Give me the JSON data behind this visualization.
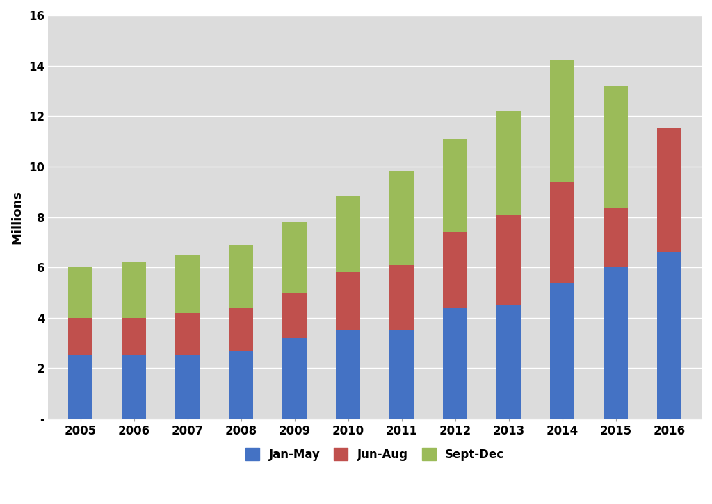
{
  "years": [
    "2005",
    "2006",
    "2007",
    "2008",
    "2009",
    "2010",
    "2011",
    "2012",
    "2013",
    "2014",
    "2015",
    "2016"
  ],
  "jan_may": [
    2.5,
    2.5,
    2.5,
    2.7,
    3.2,
    3.5,
    3.5,
    4.4,
    4.5,
    5.4,
    6.0,
    6.6
  ],
  "jun_aug": [
    1.5,
    1.5,
    1.7,
    1.7,
    1.8,
    2.3,
    2.6,
    3.0,
    3.6,
    4.0,
    2.35,
    4.9
  ],
  "sept_dec": [
    2.0,
    2.2,
    2.3,
    2.5,
    2.8,
    3.0,
    3.7,
    3.7,
    4.1,
    4.8,
    4.85,
    0.0
  ],
  "color_jan_may": "#4472C4",
  "color_jun_aug": "#C0504D",
  "color_sept_dec": "#9BBB59",
  "ylabel": "Millions",
  "ylim": [
    0,
    16
  ],
  "yticks": [
    0,
    2,
    4,
    6,
    8,
    10,
    12,
    14,
    16
  ],
  "ytick_labels": [
    "-",
    "2",
    "4",
    "6",
    "8",
    "10",
    "12",
    "14",
    "16"
  ],
  "legend_labels": [
    "Jan-May",
    "Jun-Aug",
    "Sept-Dec"
  ],
  "bar_width": 0.45,
  "background_color": "#FFFFFF",
  "plot_area_color": "#DCDCDC",
  "grid_color": "#FFFFFF",
  "spine_color": "#A0A0A0",
  "ylabel_fontsize": 13,
  "tick_fontsize": 12,
  "legend_fontsize": 12
}
